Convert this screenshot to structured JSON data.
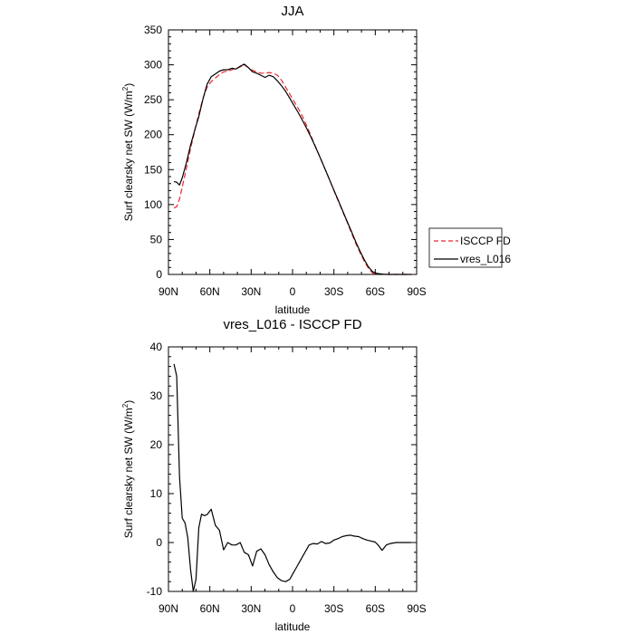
{
  "chart_data": [
    {
      "type": "line",
      "title": "JJA",
      "xlabel": "latitude",
      "ylabel": "Surf clearsky net SW (W/m",
      "ylabel_sup": "2",
      "ylabel_end": ")",
      "xlim": [
        90,
        -90
      ],
      "ylim": [
        0,
        350
      ],
      "xticks": [
        90,
        60,
        30,
        0,
        -30,
        -60,
        -90
      ],
      "xtick_labels": [
        "90N",
        "60N",
        "30N",
        "0",
        "30S",
        "60S",
        "90S"
      ],
      "yticks": [
        0,
        50,
        100,
        150,
        200,
        250,
        300,
        350
      ],
      "ytick_labels": [
        "0",
        "50",
        "100",
        "150",
        "200",
        "250",
        "300",
        "350"
      ],
      "legend": "right",
      "series": [
        {
          "name": "ISCCP FD",
          "color": "#e8282d",
          "dash": "dashed",
          "x": [
            86,
            84,
            82,
            80,
            77,
            74,
            71,
            68,
            65,
            62,
            59,
            56,
            53,
            50,
            47,
            44,
            41,
            38,
            35,
            32,
            29,
            26,
            23,
            20,
            17,
            14,
            11,
            8,
            5,
            2,
            -1,
            -4,
            -7,
            -10,
            -13,
            -16,
            -19,
            -22,
            -25,
            -28,
            -31,
            -34,
            -37,
            -40,
            -43,
            -46,
            -49,
            -52,
            -55,
            -58,
            -61,
            -63,
            -65,
            -67,
            -70,
            -73,
            -76,
            -79,
            -82,
            -86
          ],
          "y": [
            95,
            97,
            108,
            125,
            152,
            180,
            205,
            230,
            252,
            268,
            276,
            281,
            286,
            290,
            291,
            293,
            295,
            297,
            300,
            296,
            292,
            290,
            288,
            288,
            289,
            288,
            285,
            278,
            268,
            258,
            248,
            238,
            227,
            214,
            200,
            186,
            172,
            158,
            144,
            130,
            115,
            101,
            87,
            73,
            58,
            44,
            31,
            19,
            9,
            2,
            0.5,
            0.2,
            0,
            0,
            0,
            0,
            0,
            0,
            0,
            0
          ]
        },
        {
          "name": "vres_L016",
          "color": "#000000",
          "dash": "solid",
          "x": [
            86,
            84,
            82,
            80,
            77,
            74,
            71,
            68,
            65,
            62,
            59,
            56,
            53,
            50,
            47,
            44,
            41,
            38,
            35,
            32,
            29,
            26,
            23,
            20,
            17,
            14,
            11,
            8,
            5,
            2,
            -1,
            -4,
            -7,
            -10,
            -13,
            -16,
            -19,
            -22,
            -25,
            -28,
            -31,
            -34,
            -37,
            -40,
            -43,
            -46,
            -49,
            -52,
            -55,
            -58,
            -61,
            -63,
            -65,
            -67,
            -70,
            -73,
            -76,
            -79,
            -82,
            -86
          ],
          "y": [
            133,
            132,
            128,
            138,
            160,
            185,
            206,
            226,
            251,
            272,
            283,
            287,
            291,
            293,
            293,
            295,
            294,
            298,
            301,
            296,
            290,
            288,
            285,
            282,
            285,
            283,
            277,
            270,
            262,
            252,
            242,
            232,
            221,
            210,
            198,
            185,
            172,
            158,
            144,
            130,
            116,
            102,
            88,
            74,
            60,
            46,
            33,
            21,
            11,
            4,
            1.5,
            1,
            0.5,
            0.2,
            0,
            0,
            0,
            0,
            0,
            0
          ]
        }
      ]
    },
    {
      "type": "line",
      "title": "vres_L016 - ISCCP FD",
      "xlabel": "latitude",
      "ylabel": "Surf clearsky net SW (W/m",
      "ylabel_sup": "2",
      "ylabel_end": ")",
      "xlim": [
        90,
        -90
      ],
      "ylim": [
        -10,
        40
      ],
      "xticks": [
        90,
        60,
        30,
        0,
        -30,
        -60,
        -90
      ],
      "xtick_labels": [
        "90N",
        "60N",
        "30N",
        "0",
        "30S",
        "60S",
        "90S"
      ],
      "yticks": [
        -10,
        0,
        10,
        20,
        30,
        40
      ],
      "ytick_labels": [
        "-10",
        "0",
        "10",
        "20",
        "30",
        "40"
      ],
      "series": [
        {
          "name": "vres_L016 - ISCCP FD",
          "color": "#000000",
          "dash": "solid",
          "x": [
            86,
            84,
            82,
            80,
            78,
            76,
            74,
            72,
            70,
            68,
            66,
            64,
            62,
            59,
            56,
            53,
            50,
            47,
            44,
            41,
            38,
            35,
            32,
            29,
            26,
            23,
            20,
            17,
            14,
            11,
            8,
            5,
            2,
            0,
            -3,
            -6,
            -9,
            -12,
            -15,
            -18,
            -21,
            -24,
            -27,
            -30,
            -33,
            -36,
            -39,
            -42,
            -45,
            -48,
            -51,
            -54,
            -57,
            -60,
            -62,
            -65,
            -68,
            -71,
            -75,
            -80,
            -86
          ],
          "y": [
            36.5,
            34,
            13.5,
            5,
            4,
            1,
            -5.5,
            -10,
            -7.5,
            3,
            5.8,
            5.5,
            5.7,
            6.8,
            3.5,
            2.5,
            -1.5,
            0,
            -0.5,
            -0.5,
            0,
            -2,
            -2.5,
            -4.8,
            -1.8,
            -1.3,
            -2.5,
            -4.5,
            -6,
            -7.2,
            -7.8,
            -8,
            -7.5,
            -6.5,
            -5,
            -3.5,
            -2,
            -0.5,
            -0.2,
            -0.3,
            0.2,
            -0.2,
            -0.1,
            0.5,
            0.8,
            1.2,
            1.4,
            1.5,
            1.3,
            1.2,
            0.8,
            0.5,
            0.3,
            0.1,
            -0.5,
            -1.6,
            -0.5,
            -0.2,
            0,
            0,
            0
          ]
        }
      ]
    }
  ]
}
